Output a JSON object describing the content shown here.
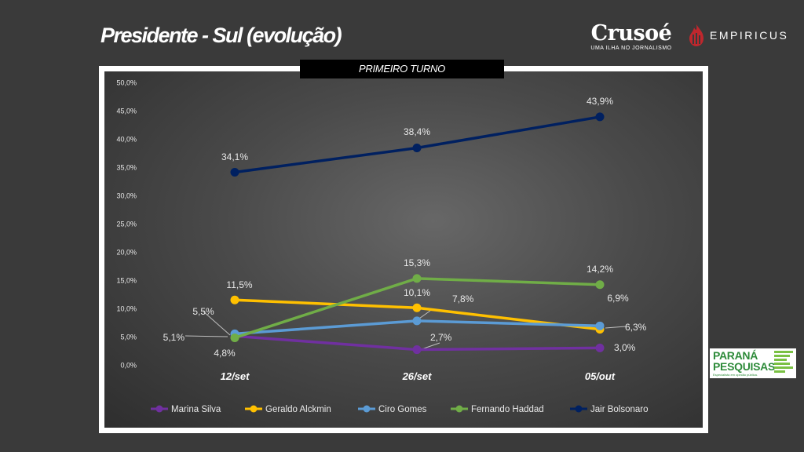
{
  "title": "Presidente - Sul (evolução)",
  "banner": "PRIMEIRO TURNO",
  "logos": {
    "crusoe": "Crusoé",
    "crusoe_tagline": "UMA ILHA NO JORNALISMO",
    "empiricus": "EMPIRICUS",
    "parana_line1": "PARANÁ",
    "parana_line2": "PESQUISAS",
    "parana_tagline": "Especialista em opinião pública."
  },
  "chart_data": {
    "type": "line",
    "title": "",
    "xlabel": "",
    "ylabel": "",
    "categories": [
      "12/set",
      "26/set",
      "05/out"
    ],
    "ylim": [
      0,
      50
    ],
    "yticks": [
      "0,0%",
      "5,0%",
      "10,0%",
      "15,0%",
      "20,0%",
      "25,0%",
      "30,0%",
      "35,0%",
      "40,0%",
      "45,0%",
      "50,0%"
    ],
    "grid": false,
    "legend_position": "bottom",
    "series": [
      {
        "name": "Marina Silva",
        "color": "#7030a0",
        "values": [
          5.1,
          2.7,
          3.0
        ],
        "labels": [
          "5,1%",
          "2,7%",
          "3,0%"
        ]
      },
      {
        "name": "Geraldo Alckmin",
        "color": "#ffc000",
        "values": [
          11.5,
          10.1,
          6.3
        ],
        "labels": [
          "11,5%",
          "10,1%",
          "6,3%"
        ]
      },
      {
        "name": "Ciro Gomes",
        "color": "#5b9bd5",
        "values": [
          5.5,
          7.8,
          6.9
        ],
        "labels": [
          "5,5%",
          "7,8%",
          "6,9%"
        ]
      },
      {
        "name": "Fernando Haddad",
        "color": "#70ad47",
        "values": [
          4.8,
          15.3,
          14.2
        ],
        "labels": [
          "4,8%",
          "15,3%",
          "14,2%"
        ]
      },
      {
        "name": "Jair Bolsonaro",
        "color": "#002060",
        "values": [
          34.1,
          38.4,
          43.9
        ],
        "labels": [
          "34,1%",
          "38,4%",
          "43,9%"
        ]
      }
    ]
  }
}
